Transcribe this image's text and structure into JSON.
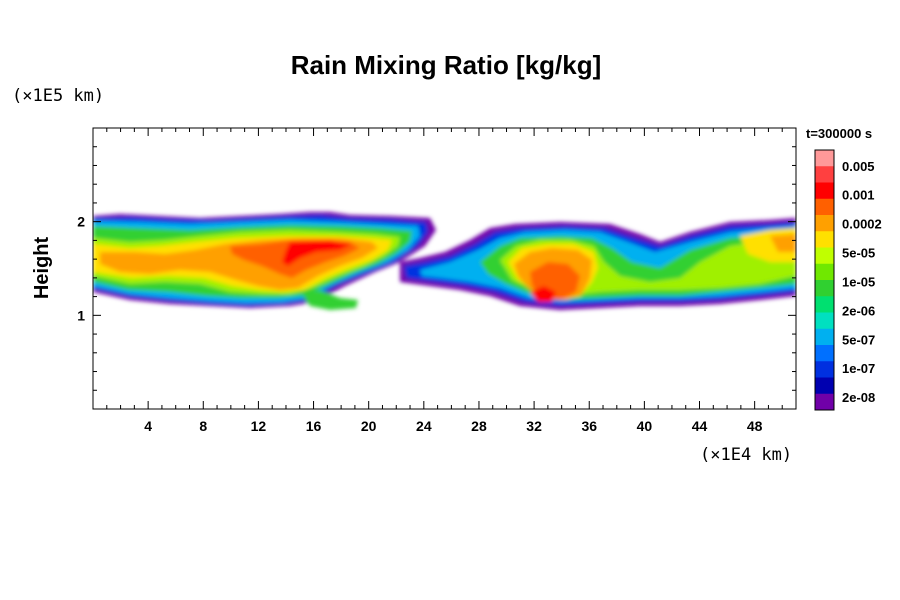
{
  "chart_data": {
    "type": "heatmap",
    "title": "Rain Mixing Ratio [kg/kg]",
    "xlabel": "",
    "ylabel": "Height",
    "x_unit": "(×1E4 km)",
    "y_unit": "(×1E5 km)",
    "time_label": "t=300000 s",
    "xlim": [
      0,
      51
    ],
    "ylim": [
      0,
      3
    ],
    "x_ticks": [
      "4",
      "8",
      "12",
      "16",
      "20",
      "24",
      "28",
      "32",
      "36",
      "40",
      "44",
      "48"
    ],
    "y_ticks": [
      "1",
      "2"
    ],
    "colorbar": {
      "labels": [
        "0.005",
        "0.001",
        "0.0002",
        "5e-05",
        "1e-05",
        "2e-06",
        "5e-07",
        "1e-07",
        "2e-08"
      ],
      "colors": [
        "#ff9999",
        "#ff4040",
        "#ff0000",
        "#ff6000",
        "#ffa000",
        "#ffe000",
        "#c0ff00",
        "#70e800",
        "#30d030",
        "#00e070",
        "#00e0c0",
        "#00b0f0",
        "#0070ff",
        "#0030e0",
        "#0000b0",
        "#7000a8"
      ]
    },
    "regions": [
      {
        "x_range": [
          0,
          24.5
        ],
        "y_range": [
          1.08,
          2.1
        ],
        "description": "western rain band"
      },
      {
        "x_range": [
          22,
          51
        ],
        "y_range": [
          1.08,
          2.08
        ],
        "description": "eastern rain band"
      }
    ]
  }
}
